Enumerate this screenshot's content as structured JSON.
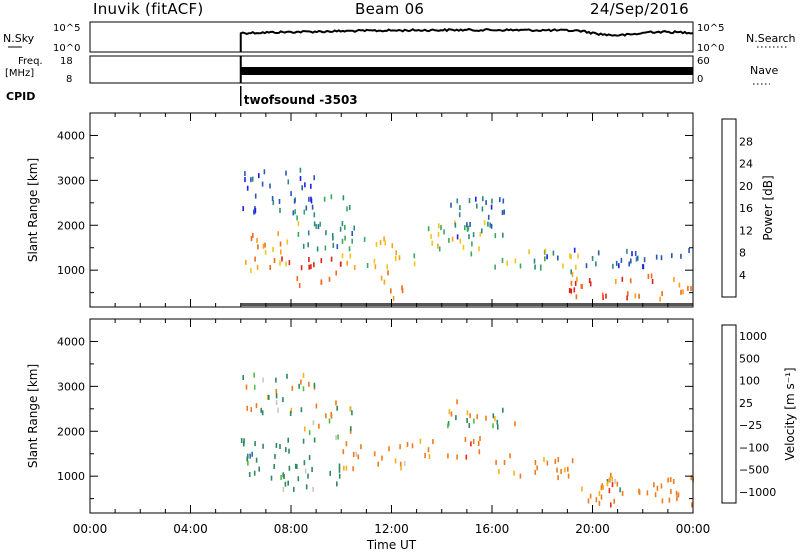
{
  "header": {
    "station": "Inuvik (fitACF)",
    "beam": "Beam 06",
    "date": "24/Sep/2016"
  },
  "strips": {
    "nsky_label": "N.Sky",
    "nsky_ticks": [
      "10^5",
      "10^0"
    ],
    "nsearch_label": "N.Search",
    "nsearch_ticks": [
      "10^5",
      "10^0"
    ],
    "freq_label": "Freq.",
    "freq_unit": "[MHz]",
    "freq_ticks": [
      "18",
      "8"
    ],
    "nave_label": "Nave",
    "nave_ticks": [
      "60",
      "0"
    ],
    "cpid_label": "CPID",
    "cpid_value": "twofsound -3503",
    "data_start_time": "06:00"
  },
  "colors": {
    "power_scale": [
      "#1f1fe8",
      "#2a58b6",
      "#2e8a7e",
      "#3aa85e",
      "#f2c51c",
      "#f7a21c",
      "#f26a1c",
      "#e0201a"
    ],
    "velocity_scale": [
      "#1e3fb4",
      "#2f6fb8",
      "#2e8a5e",
      "#4cc040",
      "#c8c8c0",
      "#f5b020",
      "#f07a1c",
      "#e82a18"
    ]
  },
  "chart_data": [
    {
      "type": "heatmap",
      "title": "",
      "xlabel": "Time UT",
      "ylabel": "Slant Range [km]",
      "x_ticks": [
        "00:00",
        "04:00",
        "08:00",
        "12:00",
        "16:00",
        "20:00",
        "00:00"
      ],
      "xlim_hours": [
        0,
        24
      ],
      "y_ticks": [
        "1000",
        "2000",
        "3000",
        "4000"
      ],
      "ylim": [
        180,
        4500
      ],
      "colorbar": {
        "label": "Power [dB]",
        "ticks": [
          "4",
          "8",
          "12",
          "16",
          "20",
          "24",
          "28"
        ],
        "range": [
          0,
          32
        ]
      },
      "blobs": [
        {
          "t": [
            6.0,
            8.0
          ],
          "r": [
            900,
            1800
          ],
          "v": 22
        },
        {
          "t": [
            7.5,
            10.0
          ],
          "r": [
            600,
            1200
          ],
          "v": 30
        },
        {
          "t": [
            8.0,
            10.5
          ],
          "r": [
            1400,
            2600
          ],
          "v": 12
        },
        {
          "t": [
            10.0,
            13.0
          ],
          "r": [
            1000,
            1700
          ],
          "v": 18
        },
        {
          "t": [
            11.5,
            12.5
          ],
          "r": [
            300,
            900
          ],
          "v": 24
        },
        {
          "t": [
            13.0,
            16.0
          ],
          "r": [
            1300,
            2000
          ],
          "v": 16
        },
        {
          "t": [
            14.0,
            16.5
          ],
          "r": [
            1600,
            2600
          ],
          "v": 8
        },
        {
          "t": [
            16.0,
            19.5
          ],
          "r": [
            900,
            1400
          ],
          "v": 16
        },
        {
          "t": [
            19.0,
            24.0
          ],
          "r": [
            300,
            900
          ],
          "v": 27
        },
        {
          "t": [
            6.0,
            9.0
          ],
          "r": [
            2200,
            3200
          ],
          "v": 5
        },
        {
          "t": [
            18.0,
            24.0
          ],
          "r": [
            1000,
            1400
          ],
          "v": 6
        }
      ]
    },
    {
      "type": "heatmap",
      "title": "",
      "xlabel": "Time UT",
      "ylabel": "Slant Range [km]",
      "x_ticks": [
        "00:00",
        "04:00",
        "08:00",
        "12:00",
        "16:00",
        "20:00",
        "00:00"
      ],
      "xlim_hours": [
        0,
        24
      ],
      "y_ticks": [
        "1000",
        "2000",
        "3000",
        "4000"
      ],
      "ylim": [
        180,
        4500
      ],
      "colorbar": {
        "label": "Velocity [m s⁻¹]",
        "ticks": [
          "1000",
          "500",
          "100",
          "25",
          "−25",
          "−100",
          "−500",
          "−1000"
        ],
        "range": [
          -1500,
          1500
        ]
      },
      "blobs": [
        {
          "t": [
            6.0,
            9.0
          ],
          "r": [
            900,
            1800
          ],
          "v": 300
        },
        {
          "t": [
            7.5,
            10.0
          ],
          "r": [
            600,
            1200
          ],
          "v": 200
        },
        {
          "t": [
            8.5,
            10.5
          ],
          "r": [
            1800,
            2600
          ],
          "v": 0
        },
        {
          "t": [
            10.0,
            13.0
          ],
          "r": [
            1100,
            1700
          ],
          "v": -200
        },
        {
          "t": [
            13.0,
            15.5
          ],
          "r": [
            1300,
            1800
          ],
          "v": -300
        },
        {
          "t": [
            14.0,
            17.0
          ],
          "r": [
            2000,
            2600
          ],
          "v": 0
        },
        {
          "t": [
            16.0,
            19.5
          ],
          "r": [
            900,
            1400
          ],
          "v": -250
        },
        {
          "t": [
            19.0,
            24.0
          ],
          "r": [
            300,
            1000
          ],
          "v": -300
        },
        {
          "t": [
            20.5,
            22.0
          ],
          "r": [
            600,
            900
          ],
          "v": 60
        },
        {
          "t": [
            6.0,
            9.0
          ],
          "r": [
            2300,
            3200
          ],
          "v": 10
        }
      ]
    }
  ]
}
